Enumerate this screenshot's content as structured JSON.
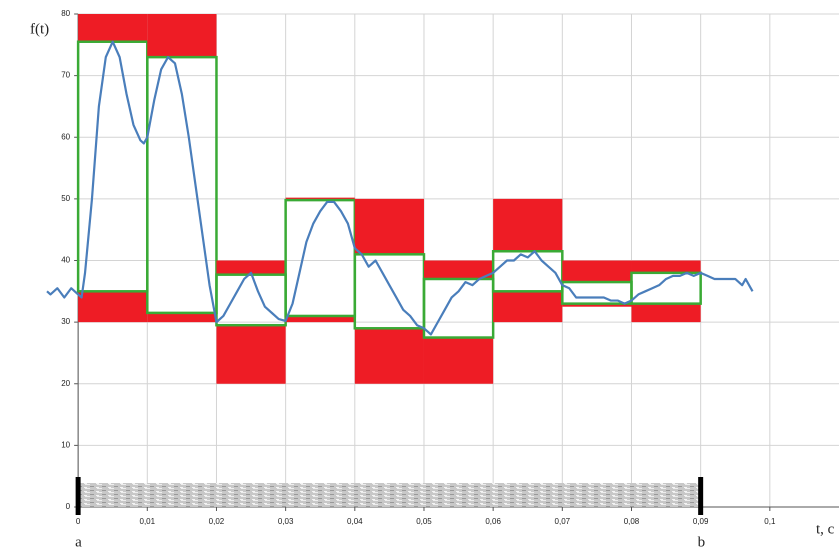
{
  "chart_data": {
    "type": "interval",
    "ylabel": "f(t)",
    "xlabel": "t, c",
    "xlim": [
      -0.0045,
      0.11
    ],
    "ylim": [
      0,
      80
    ],
    "yticks": [
      0,
      10,
      20,
      30,
      40,
      50,
      60,
      70,
      80
    ],
    "xticks": [
      0,
      {
        "value": 0.01,
        "label": "0,01"
      },
      {
        "value": 0.02,
        "label": "0,02"
      },
      {
        "value": 0.03,
        "label": "0,03"
      },
      {
        "value": 0.04,
        "label": "0,04"
      },
      {
        "value": 0.05,
        "label": "0,05"
      },
      {
        "value": 0.06,
        "label": "0,06"
      },
      {
        "value": 0.07,
        "label": "0,07"
      },
      {
        "value": 0.08,
        "label": "0,08"
      },
      {
        "value": 0.09,
        "label": "0,09"
      },
      {
        "value": 0.1,
        "label": "0,1"
      }
    ],
    "grid": true,
    "outer_color": "#ee1c25",
    "inner_color": "#3aaa35",
    "x_edges": [
      0,
      0.01,
      0.02,
      0.03,
      0.04,
      0.05,
      0.06,
      0.07,
      0.08,
      0.09
    ],
    "upper_outer": [
      80,
      80,
      40,
      50.2,
      50,
      40,
      50,
      40,
      40
    ],
    "upper_inner": [
      75.5,
      73,
      37.7,
      49.8,
      41,
      37,
      41.5,
      36.5,
      38
    ],
    "lower_inner": [
      35,
      31.5,
      29.5,
      31,
      29,
      27.5,
      35,
      33,
      33
    ],
    "lower_outer": [
      30,
      30,
      20,
      30,
      20,
      20,
      30,
      32.5,
      30
    ],
    "signal": {
      "color": "#4a7ebb",
      "x": [
        -0.0045,
        -0.004,
        -0.003,
        -0.002,
        -0.001,
        0,
        0.0005,
        0.001,
        0.002,
        0.003,
        0.004,
        0.005,
        0.006,
        0.007,
        0.008,
        0.009,
        0.0095,
        0.01,
        0.011,
        0.012,
        0.013,
        0.014,
        0.015,
        0.016,
        0.017,
        0.018,
        0.019,
        0.02,
        0.021,
        0.022,
        0.023,
        0.024,
        0.025,
        0.026,
        0.027,
        0.028,
        0.029,
        0.03,
        0.031,
        0.032,
        0.033,
        0.034,
        0.035,
        0.036,
        0.037,
        0.038,
        0.039,
        0.04,
        0.041,
        0.042,
        0.043,
        0.044,
        0.045,
        0.046,
        0.047,
        0.048,
        0.049,
        0.05,
        0.051,
        0.052,
        0.053,
        0.054,
        0.055,
        0.056,
        0.057,
        0.058,
        0.059,
        0.06,
        0.061,
        0.062,
        0.063,
        0.064,
        0.065,
        0.066,
        0.067,
        0.068,
        0.069,
        0.07,
        0.071,
        0.072,
        0.073,
        0.074,
        0.075,
        0.076,
        0.077,
        0.078,
        0.079,
        0.08,
        0.081,
        0.082,
        0.083,
        0.084,
        0.085,
        0.086,
        0.087,
        0.088,
        0.089,
        0.09,
        0.091,
        0.092,
        0.093,
        0.094,
        0.095,
        0.096,
        0.0965,
        0.0975
      ],
      "values": [
        35,
        34.5,
        35.5,
        34,
        35.5,
        34.5,
        34,
        38,
        50,
        65,
        73,
        75.5,
        73,
        67,
        62,
        59.5,
        59,
        60,
        66,
        71,
        73,
        72,
        67,
        60,
        52,
        44,
        36,
        30,
        31,
        33,
        35,
        37,
        38,
        35,
        32.5,
        31.5,
        30.5,
        30.2,
        33,
        38,
        43,
        46,
        48,
        49.5,
        49.5,
        48,
        46,
        42,
        41,
        39,
        40,
        38,
        36,
        34,
        32,
        31,
        29.5,
        29,
        28,
        30,
        32,
        34,
        35,
        36.5,
        36,
        37,
        37.5,
        38,
        39,
        40,
        40,
        41,
        40.5,
        41.5,
        40,
        39,
        38,
        36,
        35.5,
        34,
        34,
        34,
        34,
        34,
        33.5,
        33.5,
        33,
        33.5,
        34.5,
        35,
        35.5,
        36,
        37,
        37.5,
        37.5,
        38,
        37.5,
        38,
        37.5,
        37,
        37,
        37,
        37,
        36,
        37,
        35
      ]
    },
    "annotations": [
      {
        "text": "a",
        "x": 0
      },
      {
        "text": "b",
        "x": 0.09
      }
    ]
  }
}
